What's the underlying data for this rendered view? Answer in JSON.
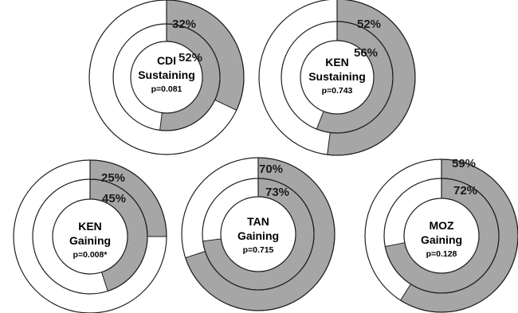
{
  "colors": {
    "filled": "#a6a6a6",
    "empty": "#ffffff",
    "stroke": "#1f1f1f"
  },
  "chart_data": {
    "type": "pie",
    "charts": [
      {
        "line1": "CDI",
        "line2": "Sustaining",
        "p": "p=0.081",
        "outer": 32,
        "inner": 52,
        "outer_label": "32%",
        "inner_label": "52%"
      },
      {
        "line1": "KEN",
        "line2": "Sustaining",
        "p": "p=0.743",
        "outer": 52,
        "inner": 56,
        "outer_label": "52%",
        "inner_label": "56%"
      },
      {
        "line1": "KEN",
        "line2": "Gaining",
        "p": "p=0.008*",
        "outer": 25,
        "inner": 45,
        "outer_label": "25%",
        "inner_label": "45%"
      },
      {
        "line1": "TAN",
        "line2": "Gaining",
        "p": "p=0.715",
        "outer": 70,
        "inner": 73,
        "outer_label": "70%",
        "inner_label": "73%"
      },
      {
        "line1": "MOZ",
        "line2": "Gaining",
        "p": "p=0.128",
        "outer": 59,
        "inner": 72,
        "outer_label": "59%",
        "inner_label": "72%"
      }
    ]
  }
}
